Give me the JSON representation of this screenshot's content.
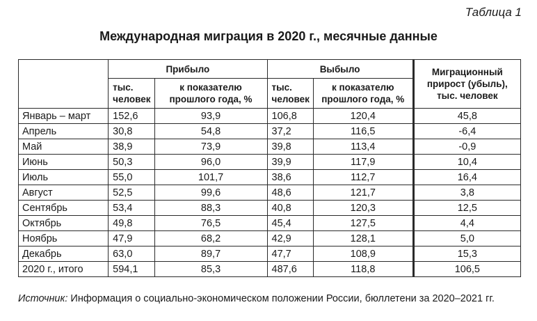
{
  "table_label": "Таблица 1",
  "title": "Международная миграция в 2020 г., месячные данные",
  "headers": {
    "arrived": "Прибыло",
    "departed": "Выбыло",
    "migration": "Миграционный прирост (убыль), тыс. человек",
    "col_thousands": "тыс. человек",
    "col_percent": "к показателю прошлого года, %"
  },
  "rows": [
    {
      "month": "Январь – март",
      "a": "152,6",
      "ap": "93,9",
      "d": "106,8",
      "dp": "120,4",
      "m": "45,8"
    },
    {
      "month": "Апрель",
      "a": "30,8",
      "ap": "54,8",
      "d": "37,2",
      "dp": "116,5",
      "m": "-6,4"
    },
    {
      "month": "Май",
      "a": "38,9",
      "ap": "73,9",
      "d": "39,8",
      "dp": "113,4",
      "m": "-0,9"
    },
    {
      "month": "Июнь",
      "a": "50,3",
      "ap": "96,0",
      "d": "39,9",
      "dp": "117,9",
      "m": "10,4"
    },
    {
      "month": "Июль",
      "a": "55,0",
      "ap": "101,7",
      "d": "38,6",
      "dp": "112,7",
      "m": "16,4"
    },
    {
      "month": "Август",
      "a": "52,5",
      "ap": "99,6",
      "d": "48,6",
      "dp": "121,7",
      "m": "3,8"
    },
    {
      "month": "Сентябрь",
      "a": "53,4",
      "ap": "88,3",
      "d": "40,8",
      "dp": "120,3",
      "m": "12,5"
    },
    {
      "month": "Октябрь",
      "a": "49,8",
      "ap": "76,5",
      "d": "45,4",
      "dp": "127,5",
      "m": "4,4"
    },
    {
      "month": "Ноябрь",
      "a": "47,9",
      "ap": "68,2",
      "d": "42,9",
      "dp": "128,1",
      "m": "5,0"
    },
    {
      "month": "Декабрь",
      "a": "63,0",
      "ap": "89,7",
      "d": "47,7",
      "dp": "108,9",
      "m": "15,3"
    },
    {
      "month": "2020 г., итого",
      "a": "594,1",
      "ap": "85,3",
      "d": "487,6",
      "dp": "118,8",
      "m": "106,5"
    }
  ],
  "source": {
    "label": "Источник:",
    "text": "Информация о социально-экономическом положении России, бюллетени за 2020–2021 гг."
  }
}
